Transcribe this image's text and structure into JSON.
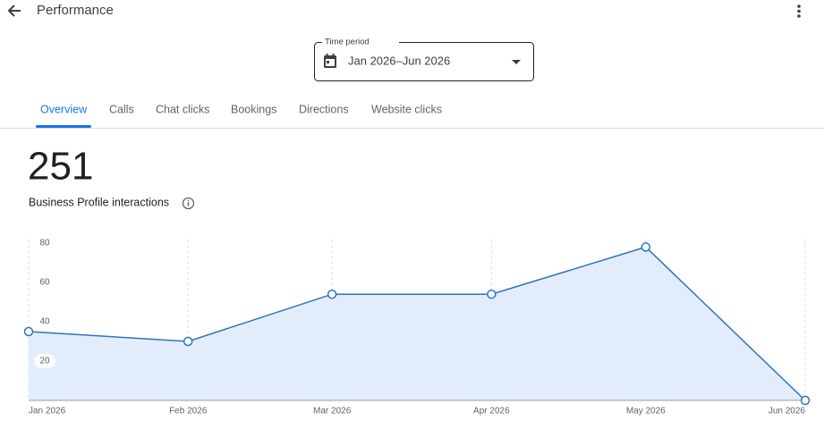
{
  "header": {
    "title": "Performance"
  },
  "time_period": {
    "label": "Time period",
    "value": "Jan 2026–Jun 2026"
  },
  "tabs": [
    "Overview",
    "Calls",
    "Chat clicks",
    "Bookings",
    "Directions",
    "Website clicks"
  ],
  "active_tab": 0,
  "summary": {
    "total": "251",
    "label": "Business Profile interactions"
  },
  "chart_data": {
    "type": "area",
    "x": [
      "Jan 2026",
      "Feb 2026",
      "Mar 2026",
      "Apr 2026",
      "May 2026",
      "Jun 2026"
    ],
    "values": [
      35,
      30,
      54,
      54,
      78,
      0
    ],
    "color": "#2f72c0",
    "fill": "#e2ecfb",
    "ylim": [
      0,
      80
    ],
    "yticks": [
      20,
      40,
      60,
      80
    ],
    "grid": true
  }
}
